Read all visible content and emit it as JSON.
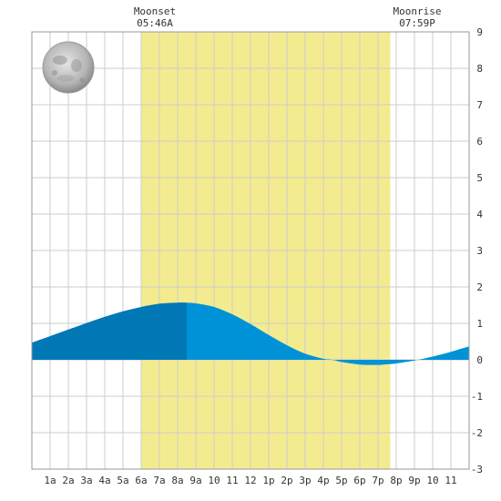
{
  "chart_data": {
    "type": "area",
    "x_unit": "hour of day",
    "x_tick_labels": [
      "1a",
      "2a",
      "3a",
      "4a",
      "5a",
      "6a",
      "7a",
      "8a",
      "9a",
      "10",
      "11",
      "12",
      "1p",
      "2p",
      "3p",
      "4p",
      "5p",
      "6p",
      "7p",
      "8p",
      "9p",
      "10",
      "11"
    ],
    "x_ticks": [
      1,
      2,
      3,
      4,
      5,
      6,
      7,
      8,
      9,
      10,
      11,
      12,
      13,
      14,
      15,
      16,
      17,
      18,
      19,
      20,
      21,
      22,
      23
    ],
    "xlim": [
      0,
      24
    ],
    "ylim": [
      -3,
      9
    ],
    "y_ticks": [
      -3,
      -2,
      -1,
      0,
      1,
      2,
      3,
      4,
      5,
      6,
      7,
      8,
      9
    ],
    "y_tick_labels": [
      "-3",
      "-2",
      "-1",
      "0",
      "1",
      "2",
      "3",
      "4",
      "5",
      "6",
      "7",
      "8",
      "9"
    ],
    "y_axis_side": "right",
    "grid": true,
    "daylight_band": {
      "start": 6.0,
      "end": 19.67,
      "color": "#f3eb8f"
    },
    "now_split_hour": 8.5,
    "series": [
      {
        "x": [
          0,
          1,
          2,
          3,
          4,
          5,
          6,
          7,
          8,
          8.5,
          9,
          10,
          11,
          12,
          13,
          14,
          15,
          16,
          16.5,
          17,
          18,
          19,
          19.3,
          20,
          21,
          22,
          23,
          24
        ],
        "values": [
          0.47,
          0.65,
          0.83,
          1.01,
          1.18,
          1.33,
          1.45,
          1.54,
          1.57,
          1.57,
          1.55,
          1.45,
          1.25,
          0.98,
          0.68,
          0.4,
          0.17,
          0.03,
          0.0,
          -0.06,
          -0.13,
          -0.14,
          -0.13,
          -0.1,
          -0.02,
          0.09,
          0.22,
          0.37
        ]
      }
    ],
    "colors": {
      "past_fill": "#0078b5",
      "future_fill": "#0092d6",
      "grid": "#cccccc",
      "border": "#999999",
      "background": "#ffffff"
    },
    "annotations": [
      {
        "name": "moonset",
        "label": "Moonset",
        "time": "05:46A",
        "x": 5.77
      },
      {
        "name": "moonrise",
        "label": "Moonrise",
        "time": "07:59P",
        "x": 19.98
      }
    ],
    "moon_icon": "full-moon-icon"
  }
}
